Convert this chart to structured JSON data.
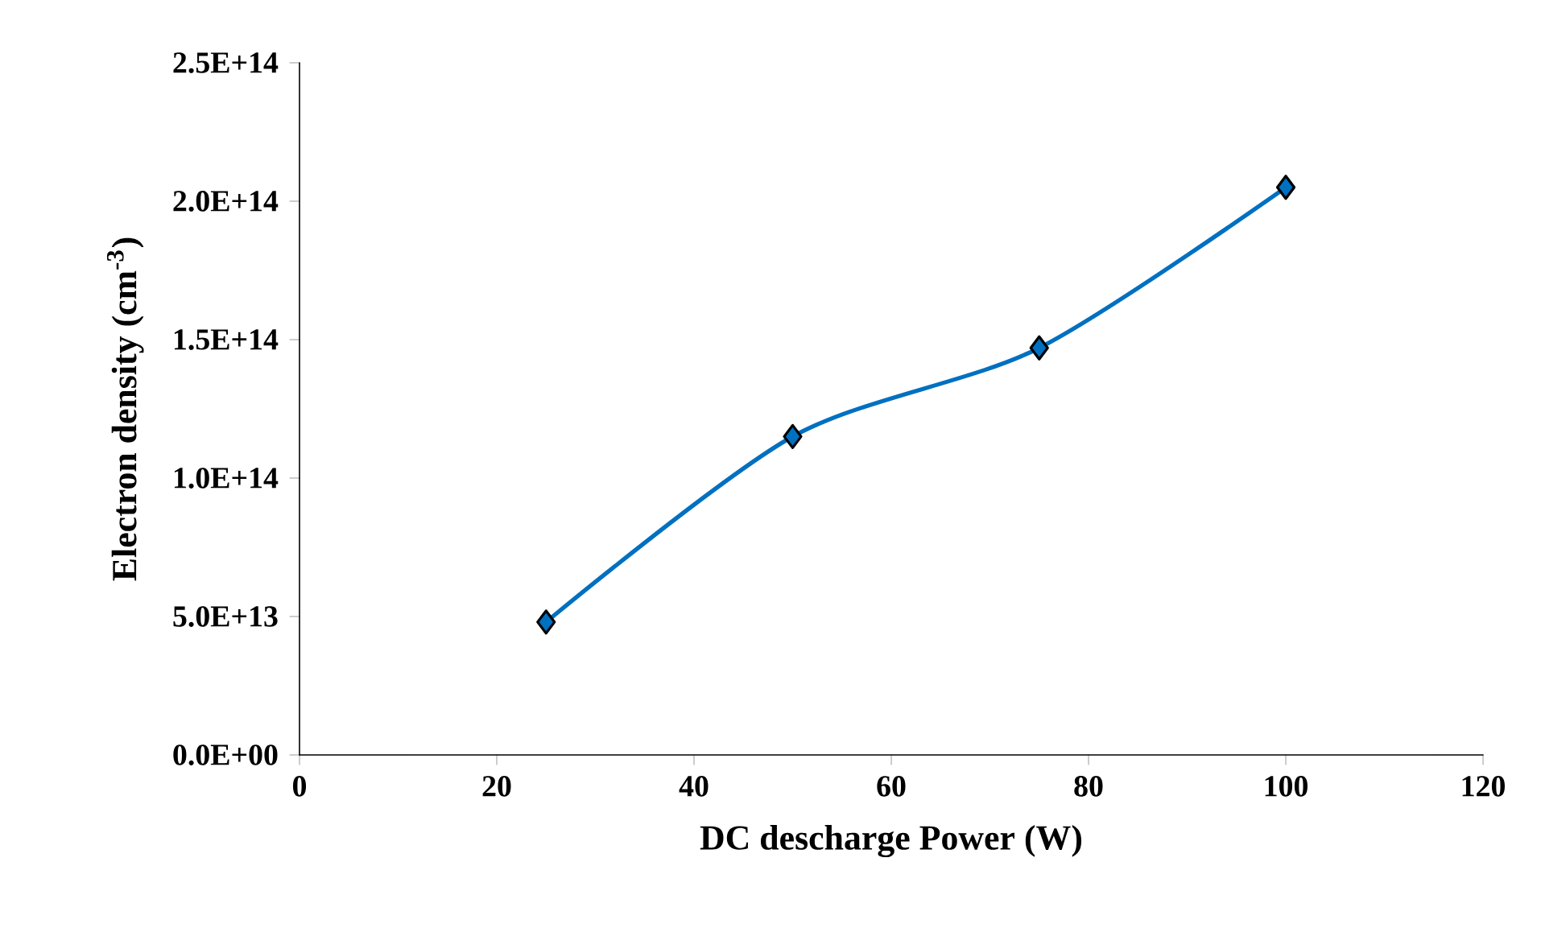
{
  "chart_data": {
    "type": "line",
    "xlabel": "DC descharge Power (W)",
    "ylabel": "Electron density (cm$^{-3}$)",
    "x": [
      25,
      50,
      75,
      100
    ],
    "series": [
      {
        "color": "#0070c0",
        "values": [
          48000000000000.0,
          115000000000000.0,
          147000000000000.0,
          205000000000000.0
        ]
      }
    ],
    "xlim": [
      0,
      120
    ],
    "xticks": [
      0,
      20,
      40,
      60,
      80,
      100,
      120
    ],
    "ylim": [
      0,
      250000000000000.0
    ],
    "yticks": [
      {
        "value": 0,
        "label": "0.0E+00"
      },
      {
        "value": 50000000000000.0,
        "label": "5.0E+13"
      },
      {
        "value": 100000000000000.0,
        "label": "1.0E+14"
      },
      {
        "value": 150000000000000.0,
        "label": "1.5E+14"
      },
      {
        "value": 200000000000000.0,
        "label": "2.0E+14"
      },
      {
        "value": 250000000000000.0,
        "label": "2.5E+14"
      }
    ],
    "marker": "diamond",
    "line_style": "solid"
  }
}
